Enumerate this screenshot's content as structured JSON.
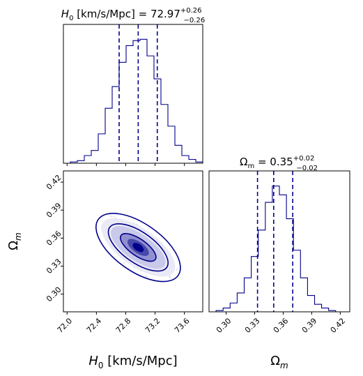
{
  "chart_data": [
    {
      "type": "histogram",
      "panel": "H0 marginal",
      "title_math": {
        "symbol": "H",
        "sub": "0",
        "rest": " [km/s/Mpc] = 72.97",
        "sup": "+0.26",
        "lower": "−0.26"
      },
      "xlim": [
        71.95,
        73.85
      ],
      "bin_edges": [
        71.95,
        72.045,
        72.14,
        72.235,
        72.33,
        72.425,
        72.52,
        72.615,
        72.71,
        72.805,
        72.9,
        72.995,
        73.09,
        73.185,
        73.28,
        73.375,
        73.47,
        73.565,
        73.66,
        73.755,
        73.85
      ],
      "counts": [
        0,
        1,
        2,
        6,
        10,
        23,
        43,
        60,
        79,
        92,
        96,
        97,
        84,
        66,
        46,
        29,
        14,
        6,
        3,
        1
      ],
      "quantiles": [
        72.71,
        72.97,
        73.23
      ],
      "color": "#00008b"
    },
    {
      "type": "contour",
      "panel": "H0 vs Omega_m joint",
      "xlim": [
        71.95,
        73.85
      ],
      "ylim": [
        0.281,
        0.432
      ],
      "xticks": [
        "72.0",
        "72.4",
        "72.8",
        "73.2",
        "73.6"
      ],
      "yticks": [
        "0.30",
        "0.33",
        "0.36",
        "0.39",
        "0.42"
      ],
      "center": [
        72.97,
        0.35
      ],
      "contour_levels": [
        "39%",
        "86%",
        "99%"
      ],
      "color": "#00008b"
    },
    {
      "type": "histogram",
      "panel": "Omega_m marginal",
      "title_math": {
        "symbol": "Ω",
        "sub": "m",
        "rest": " = 0.35",
        "sup": "+0.02",
        "lower": "−0.02"
      },
      "xlim": [
        0.282,
        0.43
      ],
      "bin_edges": [
        0.282,
        0.2894,
        0.2968,
        0.3042,
        0.3116,
        0.319,
        0.3264,
        0.3338,
        0.3412,
        0.3486,
        0.356,
        0.3634,
        0.3708,
        0.3782,
        0.3856,
        0.393,
        0.4004,
        0.4078,
        0.4152,
        0.4226,
        0.43
      ],
      "counts": [
        0,
        1,
        3,
        7,
        15,
        27,
        44,
        65,
        87,
        100,
        93,
        74,
        49,
        27,
        13,
        6,
        3,
        1,
        0,
        0
      ],
      "quantiles": [
        0.333,
        0.35,
        0.37
      ],
      "xticks": [
        "0.30",
        "0.33",
        "0.36",
        "0.39",
        "0.42"
      ],
      "color": "#00008b"
    }
  ],
  "axis_labels": {
    "x_left": {
      "symbol": "H",
      "sub": "0",
      "rest": " [km/s/Mpc]"
    },
    "x_right": {
      "symbol": "Ω",
      "sub": "m"
    },
    "y_joint": {
      "symbol": "Ω",
      "sub": "m"
    }
  }
}
